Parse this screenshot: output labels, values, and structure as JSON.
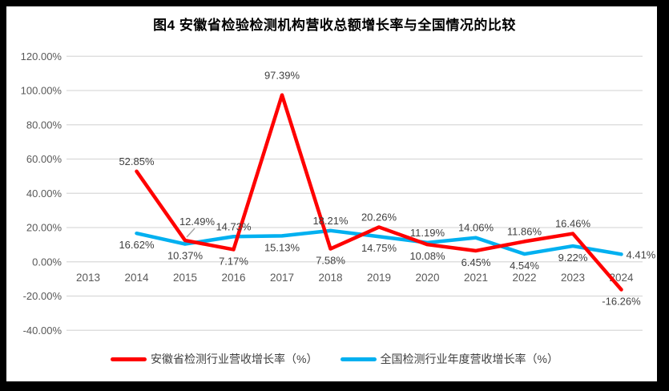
{
  "chart_data": {
    "type": "line",
    "title": "图4 安徽省检验检测机构营收总额增长率与全国情况的比较",
    "categories": [
      "2013",
      "2014",
      "2015",
      "2016",
      "2017",
      "2018",
      "2019",
      "2020",
      "2021",
      "2022",
      "2023",
      "2024"
    ],
    "series": [
      {
        "id": "anhui",
        "name": "安徽省检测行业营收增长率（%）",
        "color": "#FF0000",
        "values": [
          null,
          52.85,
          12.49,
          7.17,
          97.39,
          7.58,
          20.26,
          10.08,
          6.45,
          11.86,
          16.46,
          -16.26
        ],
        "labels": [
          null,
          "52.85%",
          "12.49%",
          "7.17%",
          "97.39%",
          "7.58%",
          "20.26%",
          "10.08%",
          "6.45%",
          "11.86%",
          "16.46%",
          "-16.26%"
        ],
        "label_side": [
          null,
          "above",
          "above-right-leader",
          "below",
          "above-far",
          "below",
          "above",
          "below",
          "below",
          "above",
          "above",
          "below"
        ]
      },
      {
        "id": "national",
        "name": "全国检测行业年度营收增长率（%）",
        "color": "#00B0F0",
        "values": [
          null,
          16.62,
          10.37,
          14.73,
          15.13,
          18.21,
          14.75,
          11.19,
          14.06,
          4.54,
          9.22,
          4.41
        ],
        "labels": [
          null,
          "16.62%",
          "10.37%",
          "14.73%",
          "15.13%",
          "18.21%",
          "14.75%",
          "11.19%",
          "14.06%",
          "4.54%",
          "9.22%",
          "4.41%"
        ],
        "label_side": [
          null,
          "below",
          "below",
          "above",
          "below",
          "above",
          "below",
          "above",
          "above",
          "below",
          "below",
          "right"
        ]
      }
    ],
    "y_ticks": [
      "120.00%",
      "100.00%",
      "80.00%",
      "60.00%",
      "40.00%",
      "20.00%",
      "0.00%",
      "-20.00%",
      "-40.00%"
    ],
    "ylim": [
      -40,
      120
    ],
    "y_tick_step": 20,
    "grid": true,
    "legend_position": "bottom",
    "colors": {
      "background": "#FFFFFF",
      "frame": "#000000",
      "gridline": "#D9D9D9",
      "axis_text": "#595959",
      "data_label_text": "#404040",
      "leader_line": "#A6A6A6",
      "title_text": "#000000"
    }
  }
}
